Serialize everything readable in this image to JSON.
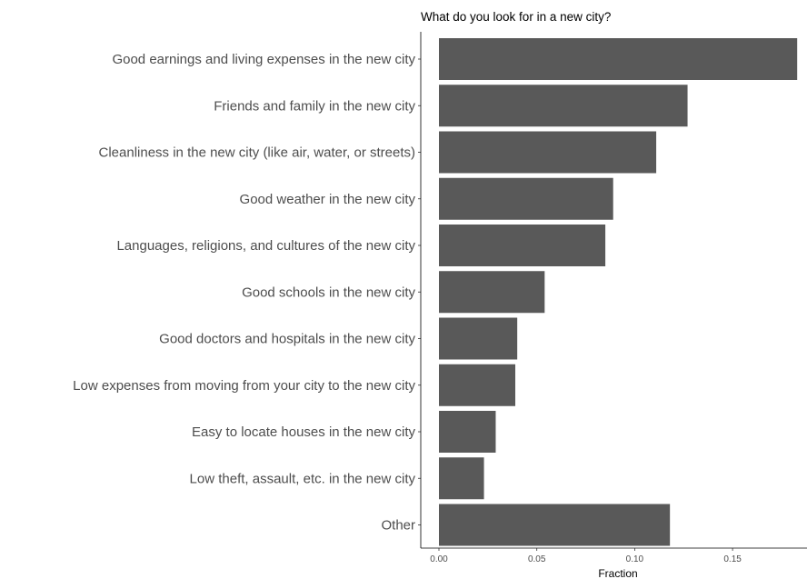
{
  "chart_data": {
    "type": "bar",
    "orientation": "horizontal",
    "title": "What do you look for in a new city?",
    "xlabel": "Fraction",
    "ylabel": "",
    "xlim": [
      0,
      0.184
    ],
    "xticks": [
      0.0,
      0.05,
      0.1,
      0.15
    ],
    "xtick_labels": [
      "0.00",
      "0.05",
      "0.10",
      "0.15"
    ],
    "grid": false,
    "bar_color": "#595959",
    "categories": [
      "Good earnings and living expenses in the new city",
      "Friends and family in the new city",
      "Cleanliness in the new city (like air, water, or streets)",
      "Good weather in the new city",
      "Languages, religions, and cultures of the new city",
      "Good schools in the new city",
      "Good doctors and hospitals in the new city",
      "Low expenses from moving from your city to the new city",
      "Easy to locate houses in the new city",
      "Low theft, assault, etc. in the new city",
      "Other"
    ],
    "values": [
      0.183,
      0.127,
      0.111,
      0.089,
      0.085,
      0.054,
      0.04,
      0.039,
      0.029,
      0.023,
      0.118
    ]
  }
}
